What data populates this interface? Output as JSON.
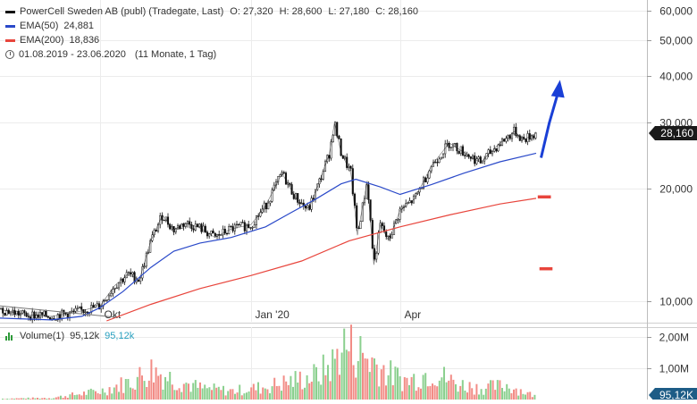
{
  "legend": {
    "title": "PowerCell Sweden AB (publ) (Tradegate, Last)",
    "ohlc": [
      {
        "label": "O:",
        "value": "27,320"
      },
      {
        "label": "H:",
        "value": "28,600"
      },
      {
        "label": "L:",
        "value": "27,180"
      },
      {
        "label": "C:",
        "value": "28,160"
      }
    ],
    "ema50": {
      "label": "EMA(50)",
      "value": "24,881",
      "color": "#2a49c9"
    },
    "ema200": {
      "label": "EMA(200)",
      "value": "18,836",
      "color": "#e8453c"
    },
    "range": "01.08.2019 - 23.06.2020",
    "range_detail": "(11 Monate, 1 Tag)"
  },
  "volume_legend": {
    "label": "Volume(1)",
    "value1": "95,12k",
    "value2": "95,12k",
    "color": "#2e9b3a",
    "value2_color": "#2aa1c0"
  },
  "price_axis": {
    "scale": "log",
    "ticks": [
      {
        "value": 60000,
        "label": "60,000"
      },
      {
        "value": 50000,
        "label": "50,000"
      },
      {
        "value": 40000,
        "label": "40,000"
      },
      {
        "value": 30000,
        "label": "30,000"
      },
      {
        "value": 20000,
        "label": "20,000"
      },
      {
        "value": 10000,
        "label": "10,000"
      }
    ],
    "last_price_label": "28,160"
  },
  "volume_axis": {
    "ticks": [
      {
        "value": 2000000,
        "label": "2,00M"
      },
      {
        "value": 1000000,
        "label": "1,00M"
      }
    ],
    "last_volume_label": "95,12K"
  },
  "time_axis": {
    "ticks": [
      {
        "date": "2019-10-01",
        "label": "Okt"
      },
      {
        "date": "2020-01-01",
        "label": "Jan '20"
      },
      {
        "date": "2020-04-01",
        "label": "Apr"
      }
    ]
  },
  "chart_data": {
    "type": "line",
    "title": "PowerCell Sweden AB (publ) (Tradegate, Last)",
    "x_range": [
      "2019-08-01",
      "2020-06-23"
    ],
    "y_scale": "log",
    "ylim": [
      8800,
      64000
    ],
    "grid": true,
    "legend_placement": "top-left",
    "series": [
      {
        "name": "PowerCell Sweden AB (publ) (Tradegate, Last)",
        "color": "#111111",
        "x": [
          "2019-08-01",
          "2019-08-15",
          "2019-09-01",
          "2019-09-15",
          "2019-10-01",
          "2019-10-10",
          "2019-10-18",
          "2019-10-25",
          "2019-11-01",
          "2019-11-08",
          "2019-11-15",
          "2019-11-22",
          "2019-12-01",
          "2019-12-10",
          "2019-12-20",
          "2020-01-01",
          "2020-01-10",
          "2020-01-20",
          "2020-01-28",
          "2020-02-05",
          "2020-02-12",
          "2020-02-18",
          "2020-02-21",
          "2020-02-25",
          "2020-03-02",
          "2020-03-06",
          "2020-03-12",
          "2020-03-16",
          "2020-03-20",
          "2020-03-25",
          "2020-04-01",
          "2020-04-10",
          "2020-04-20",
          "2020-05-01",
          "2020-05-10",
          "2020-05-20",
          "2020-06-01",
          "2020-06-10",
          "2020-06-15",
          "2020-06-23"
        ],
        "y": [
          9500,
          9200,
          9100,
          9300,
          9700,
          11000,
          11800,
          11400,
          14500,
          17000,
          15500,
          16200,
          15700,
          14800,
          15600,
          16000,
          18000,
          22000,
          19000,
          17500,
          21000,
          25000,
          30000,
          25000,
          22000,
          15000,
          21000,
          12500,
          16000,
          14500,
          17500,
          18800,
          23000,
          26500,
          25000,
          23500,
          26500,
          28500,
          27000,
          28160
        ]
      },
      {
        "name": "EMA(50)",
        "color": "#2a49c9",
        "x": [
          "2019-08-01",
          "2019-09-01",
          "2019-09-20",
          "2019-10-01",
          "2019-10-15",
          "2019-11-01",
          "2019-11-15",
          "2019-12-01",
          "2019-12-20",
          "2020-01-10",
          "2020-01-25",
          "2020-02-10",
          "2020-02-25",
          "2020-03-05",
          "2020-03-20",
          "2020-04-01",
          "2020-04-20",
          "2020-05-10",
          "2020-06-01",
          "2020-06-23"
        ],
        "y": [
          9000,
          8900,
          9100,
          9600,
          10600,
          12300,
          13600,
          14300,
          14800,
          15800,
          17200,
          18800,
          20600,
          21200,
          20200,
          19300,
          20500,
          22000,
          23600,
          24881
        ]
      },
      {
        "name": "EMA(200)",
        "color": "#e8453c",
        "x": [
          "2019-10-05",
          "2019-11-01",
          "2019-12-01",
          "2020-01-01",
          "2020-02-01",
          "2020-03-01",
          "2020-04-01",
          "2020-05-01",
          "2020-06-01",
          "2020-06-23"
        ],
        "y": [
          8850,
          9800,
          10800,
          11700,
          12800,
          14500,
          15800,
          17000,
          18200,
          18836
        ]
      }
    ],
    "projections": [
      {
        "kind": "arrow",
        "color": "#1a3fd6",
        "x": [
          "2020-06-26",
          "2020-07-01",
          "2020-07-07"
        ],
        "y": [
          24200,
          30000,
          37000
        ]
      },
      {
        "kind": "marker",
        "color": "#e8453c",
        "x": [
          "2020-06-24",
          "2020-07-02"
        ],
        "y": [
          19000,
          19000
        ]
      },
      {
        "kind": "marker",
        "color": "#e8453c",
        "x": [
          "2020-06-25",
          "2020-07-03"
        ],
        "y": [
          12200,
          12200
        ]
      }
    ],
    "volume": {
      "x": [
        "2019-08-01",
        "2019-09-01",
        "2019-10-01",
        "2019-10-20",
        "2019-11-01",
        "2019-11-15",
        "2019-12-01",
        "2019-12-20",
        "2020-01-10",
        "2020-01-25",
        "2020-02-10",
        "2020-02-20",
        "2020-02-25",
        "2020-03-05",
        "2020-03-15",
        "2020-03-25",
        "2020-04-05",
        "2020-04-20",
        "2020-05-05",
        "2020-05-20",
        "2020-06-05",
        "2020-06-23"
      ],
      "y": [
        30000,
        60000,
        300000,
        650000,
        1050000,
        700000,
        400000,
        300000,
        450000,
        650000,
        850000,
        1300000,
        1950000,
        1700000,
        1350000,
        900000,
        650000,
        1000000,
        550000,
        400000,
        500000,
        95120
      ]
    }
  }
}
